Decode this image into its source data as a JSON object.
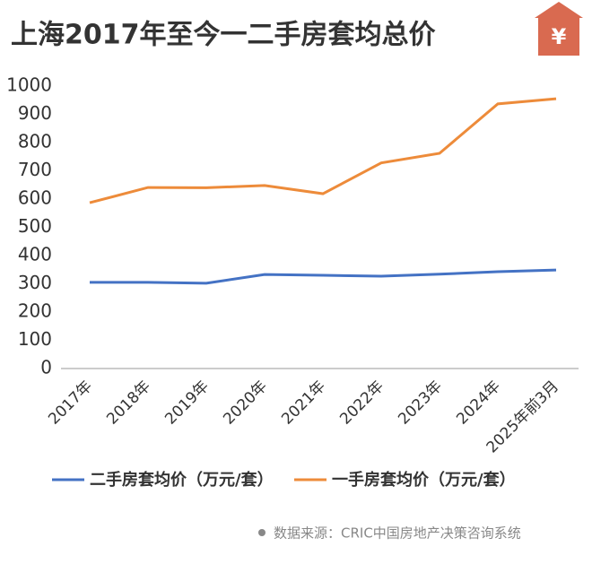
{
  "chart_data": {
    "type": "line",
    "title": "上海2017年至今一二手房套均总价",
    "icon": "¥",
    "categories": [
      "2017年",
      "2018年",
      "2019年",
      "2020年",
      "2021年",
      "2022年",
      "2023年",
      "2024年",
      "2025年前3月"
    ],
    "series": [
      {
        "name": "二手房套均价（万元/套）",
        "color": "#4472c4",
        "values": [
          305,
          305,
          302,
          333,
          330,
          327,
          334,
          343,
          349
        ]
      },
      {
        "name": "一手房套均价（万元/套）",
        "color": "#ed8b3a",
        "values": [
          587,
          641,
          640,
          648,
          619,
          728,
          762,
          937,
          955
        ]
      }
    ],
    "ylim": [
      0,
      1000
    ],
    "yticks": [
      0,
      100,
      200,
      300,
      400,
      500,
      600,
      700,
      800,
      900,
      1000
    ],
    "grid": false,
    "legend": "bottom",
    "source": "数据来源：CRIC中国房地产决策咨询系统"
  }
}
